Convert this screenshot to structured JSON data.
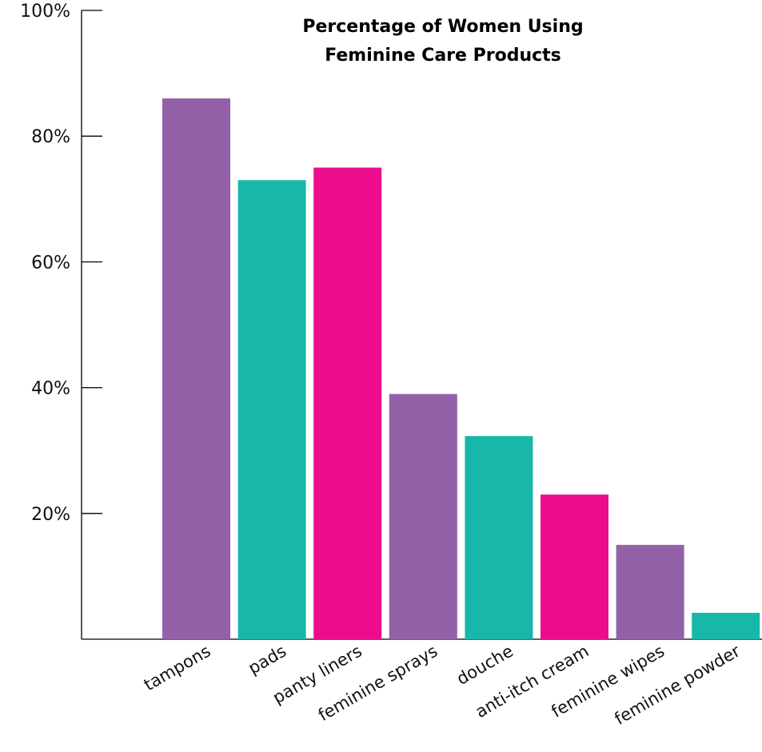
{
  "chart_data": {
    "type": "bar",
    "title": [
      "Percentage of Women Using",
      "Feminine Care Products"
    ],
    "categories": [
      "tampons",
      "pads",
      "panty liners",
      "feminine sprays",
      "douche",
      "anti-itch cream",
      "feminine wipes",
      "feminine powder"
    ],
    "values": [
      86,
      73,
      75,
      39,
      32.3,
      23,
      15,
      4.2
    ],
    "bar_colors": [
      "#9361a8",
      "#17b8aa",
      "#ec0c8c",
      "#9361a8",
      "#17b8aa",
      "#ec0c8c",
      "#9361a8",
      "#17b8aa"
    ],
    "ylim": [
      0,
      100
    ],
    "yticks": [
      20,
      40,
      60,
      80,
      100
    ],
    "ytick_labels": [
      "20%",
      "40%",
      "60%",
      "80%",
      "100%"
    ],
    "xlabel": "",
    "ylabel": "",
    "grid": false,
    "legend": "none"
  }
}
